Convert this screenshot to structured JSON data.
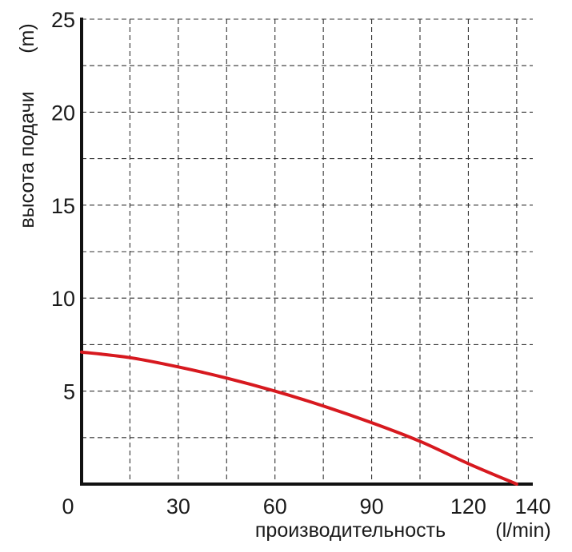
{
  "chart_data": {
    "type": "line",
    "xlabel": "производительность",
    "xunit": "(l/min)",
    "ylabel": "высота подачи",
    "yunit": "(m)",
    "xlim": [
      0,
      140
    ],
    "ylim": [
      0,
      25
    ],
    "x_ticks": [
      "30",
      "60",
      "90",
      "120",
      "140"
    ],
    "y_ticks": [
      "5",
      "10",
      "15",
      "20",
      "25"
    ],
    "origin_label": "0",
    "grid": true,
    "series": [
      {
        "color": "#d7191f",
        "x": [
          0,
          15,
          30,
          45,
          60,
          75,
          90,
          105,
          120,
          135
        ],
        "y": [
          7.1,
          6.8,
          6.3,
          5.7,
          5.0,
          4.2,
          3.3,
          2.3,
          1.1,
          0
        ]
      }
    ]
  }
}
